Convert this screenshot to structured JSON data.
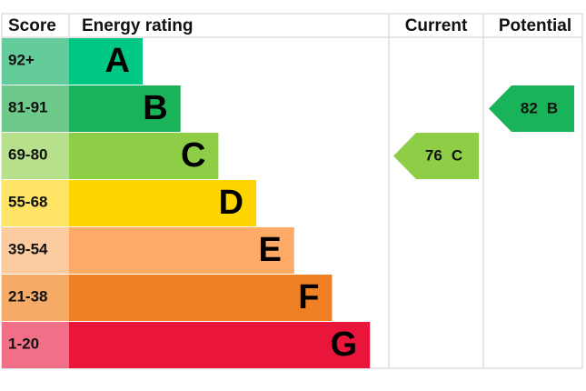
{
  "header": {
    "score": "Score",
    "rating": "Energy rating",
    "current": "Current",
    "potential": "Potential"
  },
  "rows": [
    {
      "score": "92+",
      "band": "A",
      "color": "#00c781",
      "score_color": "#63cc9a"
    },
    {
      "score": "81-91",
      "band": "B",
      "color": "#19b459",
      "score_color": "#6dc98a"
    },
    {
      "score": "69-80",
      "band": "C",
      "color": "#8dce46",
      "score_color": "#b6e08b"
    },
    {
      "score": "55-68",
      "band": "D",
      "color": "#ffd500",
      "score_color": "#ffe466"
    },
    {
      "score": "39-54",
      "band": "E",
      "color": "#fcaa65",
      "score_color": "#fdcba0"
    },
    {
      "score": "21-38",
      "band": "F",
      "color": "#ef8023",
      "score_color": "#f5aa66"
    },
    {
      "score": "1-20",
      "band": "G",
      "color": "#e9153b",
      "score_color": "#f17087"
    }
  ],
  "current": {
    "score": 76,
    "band": "C"
  },
  "potential": {
    "score": 82,
    "band": "B"
  }
}
